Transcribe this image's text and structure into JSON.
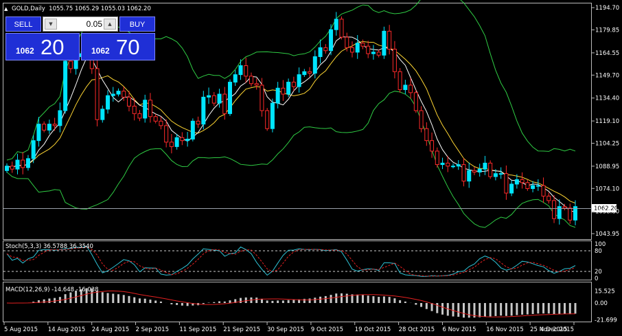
{
  "header": {
    "symbol_info": "GOLD,Daily  1055.75 1065.29 1055.03 1062.20"
  },
  "trade_panel": {
    "sell_label": "SELL",
    "buy_label": "BUY",
    "lot_value": "0.05",
    "bid_big": "1062",
    "bid_small": "20",
    "ask_big": "1062",
    "ask_small": "70"
  },
  "current_price_label": "1062.20",
  "indicators": {
    "stoch_label": "Stoch(5,3,3) 36.5788 36.3540",
    "macd_label": "MACD(12,26,9) -14.648 -16.038"
  },
  "colors": {
    "bull_candle": "#00e5ff",
    "bear_candle": "#ff2a2a",
    "ma_fast": "#ffffff",
    "ma_slow": "#ffd633",
    "bands": "#2fcc44",
    "stoch_main": "#2ec3d6",
    "stoch_signal": "#e52020",
    "macd_hist": "#c8c8c8",
    "macd_signal": "#e52020",
    "grid_text": "#ffffff",
    "panel_blue": "#1f2fd6"
  },
  "chart_data": {
    "type": "candlestick",
    "price_axis_ticks": [
      "1194.70",
      "1179.85",
      "1164.55",
      "1149.70",
      "1134.40",
      "1119.10",
      "1104.25",
      "1088.95",
      "1074.10",
      "1058.80",
      "1043.95"
    ],
    "price_range": [
      1040.3,
      1197.5
    ],
    "time_labels": [
      "5 Aug 2015",
      "14 Aug 2015",
      "24 Aug 2015",
      "2 Sep 2015",
      "11 Sep 2015",
      "21 Sep 2015",
      "30 Sep 2015",
      "9 Oct 2015",
      "19 Oct 2015",
      "28 Oct 2015",
      "6 Nov 2015",
      "16 Nov 2015",
      "25 Nov 2015",
      "4 Dec 2015"
    ],
    "close": [
      1089,
      1087,
      1093,
      1088,
      1094,
      1106,
      1117,
      1113,
      1117,
      1116,
      1126,
      1159,
      1154,
      1162,
      1164,
      1167,
      1154,
      1120,
      1127,
      1136,
      1137,
      1139,
      1135,
      1129,
      1124,
      1121,
      1133,
      1122,
      1119,
      1116,
      1105,
      1102,
      1108,
      1106,
      1107,
      1119,
      1117,
      1135,
      1136,
      1131,
      1137,
      1124,
      1145,
      1150,
      1156,
      1149,
      1144,
      1143,
      1126,
      1114,
      1131,
      1141,
      1137,
      1145,
      1142,
      1150,
      1152,
      1151,
      1162,
      1168,
      1166,
      1180,
      1187,
      1175,
      1168,
      1165,
      1171,
      1169,
      1164,
      1165,
      1163,
      1179,
      1167,
      1152,
      1140,
      1143,
      1138,
      1126,
      1114,
      1106,
      1099,
      1090,
      1091,
      1089,
      1089,
      1090,
      1079,
      1086,
      1085,
      1087,
      1091,
      1082,
      1084,
      1084,
      1071,
      1077,
      1080,
      1078,
      1074,
      1076,
      1076,
      1069,
      1066,
      1054,
      1062,
      1061,
      1053,
      1062
    ],
    "stoch_range": [
      0,
      100
    ],
    "stoch_levels": [
      80,
      20
    ],
    "stoch_axis_ticks": [
      "100",
      "80",
      "20",
      "0"
    ],
    "macd_axis_ticks": [
      "15.525",
      "0.00",
      "-21.699"
    ],
    "macd_range": [
      -22,
      22
    ]
  }
}
